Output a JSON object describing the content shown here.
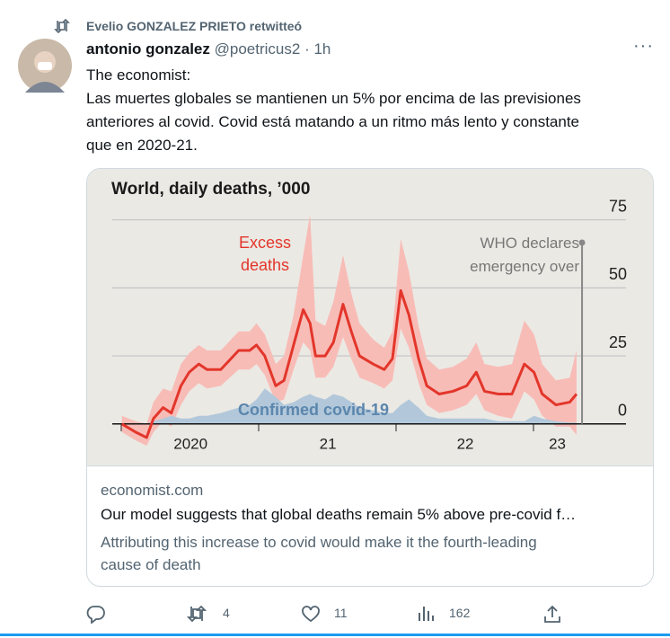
{
  "retweet_by": "Evelio GONZALEZ PRIETO retwitteó",
  "tweet": {
    "name": "antonio gonzalez",
    "handle": "@poetricus2",
    "separator": "·",
    "time": "1h",
    "text": [
      "The economist:",
      "Las muertes globales se mantienen un 5% por encima de las previsiones",
      "anteriores al covid. Covid está matando a un ritmo más lento y constante",
      "que en 2020-21."
    ]
  },
  "card": {
    "chart": {
      "type": "line",
      "title": "World, daily deaths, ’000",
      "x": [
        2020.0,
        2020.1,
        2020.18,
        2020.23,
        2020.3,
        2020.36,
        2020.43,
        2020.49,
        2020.56,
        2020.62,
        2020.72,
        2020.85,
        2020.93,
        2020.98,
        2021.04,
        2021.12,
        2021.18,
        2021.25,
        2021.32,
        2021.37,
        2021.41,
        2021.48,
        2021.54,
        2021.61,
        2021.67,
        2021.73,
        2021.83,
        2021.91,
        2021.97,
        2022.03,
        2022.09,
        2022.16,
        2022.22,
        2022.31,
        2022.41,
        2022.51,
        2022.58,
        2022.64,
        2022.74,
        2022.84,
        2022.93,
        2023.0,
        2023.06,
        2023.16,
        2023.26,
        2023.31
      ],
      "series": [
        {
          "name": "Excess deaths",
          "color": "#e3362b",
          "band_color": "#f8bcb7",
          "values": [
            0,
            -3,
            -5,
            2,
            6,
            4,
            14,
            19,
            22,
            20,
            20,
            27,
            27,
            29,
            25,
            14,
            16,
            29,
            42,
            37,
            25,
            25,
            30,
            44,
            34,
            25,
            22,
            20,
            24,
            49,
            40,
            24,
            14,
            11,
            12,
            14,
            19,
            12,
            11,
            11,
            22,
            19,
            11,
            7,
            8,
            11
          ],
          "upper": [
            3,
            1,
            0,
            8,
            13,
            12,
            22,
            26,
            29,
            27,
            27,
            34,
            34,
            37,
            33,
            22,
            25,
            40,
            62,
            77,
            38,
            36,
            45,
            62,
            48,
            37,
            31,
            28,
            34,
            68,
            56,
            36,
            24,
            20,
            21,
            24,
            30,
            22,
            21,
            22,
            38,
            33,
            22,
            16,
            17,
            27
          ],
          "lower": [
            -3,
            -6,
            -8,
            -3,
            1,
            -1,
            7,
            12,
            15,
            13,
            14,
            20,
            20,
            22,
            18,
            8,
            9,
            20,
            30,
            27,
            17,
            17,
            21,
            32,
            24,
            17,
            15,
            13,
            16,
            35,
            28,
            15,
            7,
            4,
            5,
            7,
            11,
            5,
            3,
            2,
            12,
            9,
            3,
            -1,
            -1,
            -4
          ]
        },
        {
          "name": "Confirmed covid-19",
          "color": "#b2c8da",
          "style": "area",
          "values": [
            0,
            0,
            0,
            1,
            2,
            3,
            2,
            2,
            3,
            3,
            4,
            6,
            7,
            9,
            13,
            10,
            7,
            8,
            10,
            11,
            10,
            9,
            11,
            10,
            8,
            6,
            5,
            4,
            4,
            7,
            9,
            6,
            3,
            2,
            2,
            2,
            2,
            2,
            1,
            1,
            1,
            3,
            2,
            1,
            0.5,
            0.5
          ]
        }
      ],
      "annotation": {
        "text": "WHO declares emergency over",
        "x": 2023.35
      },
      "xlim": [
        2019.93,
        2023.67
      ],
      "xticks": [
        {
          "value": 2020.5,
          "label": "2020"
        },
        {
          "value": 2021.5,
          "label": "21"
        },
        {
          "value": 2022.5,
          "label": "22"
        },
        {
          "value": 2023.17,
          "label": "23"
        }
      ],
      "ylim": [
        -8,
        82
      ],
      "yticks": [
        0,
        25,
        50,
        75
      ],
      "grid": true
    },
    "domain": "economist.com",
    "title": "Our model suggests that global deaths remain 5% above pre-covid f…",
    "description": [
      "Attributing this increase to covid would make it the fourth-leading",
      "cause of death"
    ]
  },
  "actions": {
    "retweets": 4,
    "likes": 11,
    "views": 162
  }
}
